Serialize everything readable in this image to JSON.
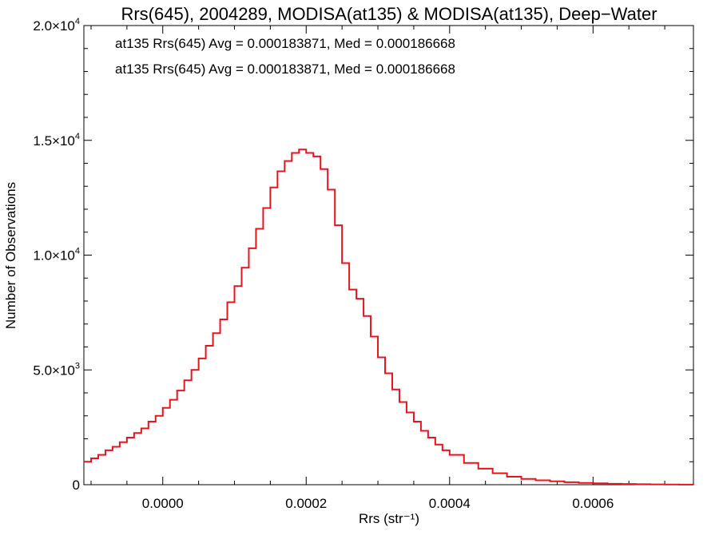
{
  "chart_data": {
    "type": "histogram",
    "title": "Rrs(645), 2004289, MODISA(at135) & MODISA(at135), Deep−Water",
    "xlabel": "Rrs (str⁻¹)",
    "ylabel": "Number of Observations",
    "xlim": [
      -0.00011,
      0.00074
    ],
    "ylim": [
      0,
      20000
    ],
    "x_ticks": [
      0.0,
      0.0002,
      0.0004,
      0.0006
    ],
    "x_tick_labels": [
      "0.0000",
      "0.0002",
      "0.0004",
      "0.0006"
    ],
    "y_ticks": [
      0,
      5000,
      10000,
      15000,
      20000
    ],
    "y_tick_labels": [
      {
        "mant": "0",
        "exp": ""
      },
      {
        "mant": "5.0×10",
        "exp": "3"
      },
      {
        "mant": "1.0×10",
        "exp": "4"
      },
      {
        "mant": "1.5×10",
        "exp": "4"
      },
      {
        "mant": "2.0×10",
        "exp": "4"
      }
    ],
    "legend_placement": "top-left",
    "annotations": [
      {
        "text": "at135 Rrs(645) Avg = 0.000183871, Med = 0.000186668",
        "color": "#000000"
      },
      {
        "text": "at135 Rrs(645) Avg = 0.000183871, Med = 0.000186668",
        "color": "#e8141b"
      }
    ],
    "series": [
      {
        "color": "#e8141b",
        "x": [
          -0.00011,
          -0.0001,
          -9e-05,
          -8e-05,
          -7e-05,
          -6e-05,
          -5e-05,
          -4e-05,
          -3e-05,
          -2e-05,
          -1e-05,
          0.0,
          1e-05,
          2e-05,
          3e-05,
          4e-05,
          5e-05,
          6e-05,
          7e-05,
          8e-05,
          9e-05,
          0.0001,
          0.00011,
          0.00012,
          0.00013,
          0.00014,
          0.00015,
          0.00016,
          0.00017,
          0.00018,
          0.00019,
          0.0002,
          0.00021,
          0.00022,
          0.00023,
          0.00024,
          0.00025,
          0.00026,
          0.00027,
          0.00028,
          0.00029,
          0.0003,
          0.00031,
          0.00032,
          0.00033,
          0.00034,
          0.00035,
          0.00036,
          0.00037,
          0.00038,
          0.00039,
          0.0004,
          0.00042,
          0.00044,
          0.00046,
          0.00048,
          0.0005,
          0.00052,
          0.00054,
          0.00056,
          0.00058,
          0.0006,
          0.00062,
          0.00064,
          0.00066,
          0.00068,
          0.0007,
          0.00072,
          0.00074
        ],
        "y": [
          1000,
          1150,
          1300,
          1500,
          1650,
          1850,
          2050,
          2250,
          2450,
          2750,
          3000,
          3350,
          3700,
          4100,
          4550,
          5000,
          5500,
          6050,
          6600,
          7200,
          7950,
          8650,
          9450,
          10300,
          11150,
          12050,
          12950,
          13650,
          14100,
          14450,
          14600,
          14450,
          14300,
          13750,
          12850,
          11300,
          9650,
          8500,
          8100,
          7350,
          6450,
          5550,
          4850,
          4150,
          3600,
          3150,
          2750,
          2350,
          2050,
          1750,
          1500,
          1300,
          950,
          700,
          500,
          350,
          250,
          190,
          150,
          110,
          80,
          60,
          40,
          30,
          20,
          15,
          10,
          5,
          3
        ]
      }
    ]
  }
}
